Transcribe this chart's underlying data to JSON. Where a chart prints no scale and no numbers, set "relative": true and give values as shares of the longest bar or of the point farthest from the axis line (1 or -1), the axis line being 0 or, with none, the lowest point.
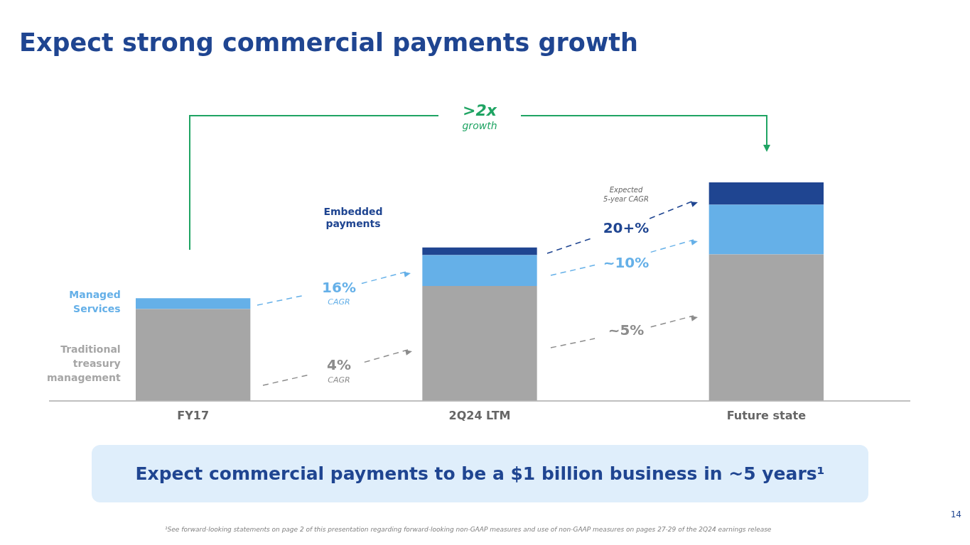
{
  "chart_data": {
    "type": "bar",
    "title": "Expect strong commercial payments growth",
    "categories": [
      "FY17",
      "2Q24 LTM",
      "Future state"
    ],
    "stacked": true,
    "relative": true,
    "legend": false,
    "grid": false,
    "series": [
      {
        "name": "Traditional treasury management",
        "color": "#a6a6a6",
        "values": [
          0.42,
          0.526,
          0.67
        ]
      },
      {
        "name": "Managed Services",
        "color": "#65b0e8",
        "values": [
          0.05,
          0.141,
          0.228
        ]
      },
      {
        "name": "Embedded payments",
        "color": "#1f4591",
        "values": [
          null,
          0.035,
          0.102
        ]
      }
    ],
    "annotations": [
      ">2x",
      "growth",
      "16%",
      "CAGR",
      "4%",
      "CAGR",
      "Expected",
      "5-year CAGR",
      "20+%",
      "~10%",
      "~5%",
      "Expect commercial payments to be a $1 billion business in ~5 years¹",
      "¹See forward-looking statements on page 2 of this presentation regarding forward-looking non-GAAP measures and use of non-GAAP measures on pages 27-29 of the 2Q24 earnings release",
      "14"
    ]
  }
}
